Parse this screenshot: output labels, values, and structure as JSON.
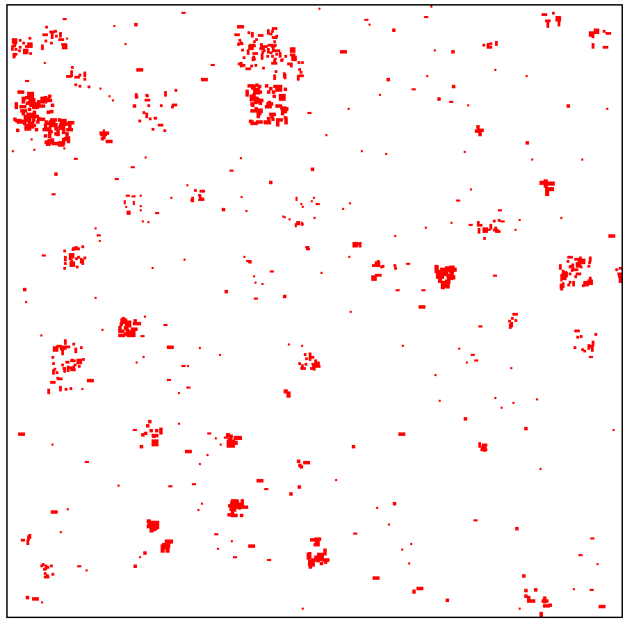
{
  "canvas": {
    "background": "#ffffff",
    "border_color": "#000000",
    "cell_color": "#ff0000"
  }
}
